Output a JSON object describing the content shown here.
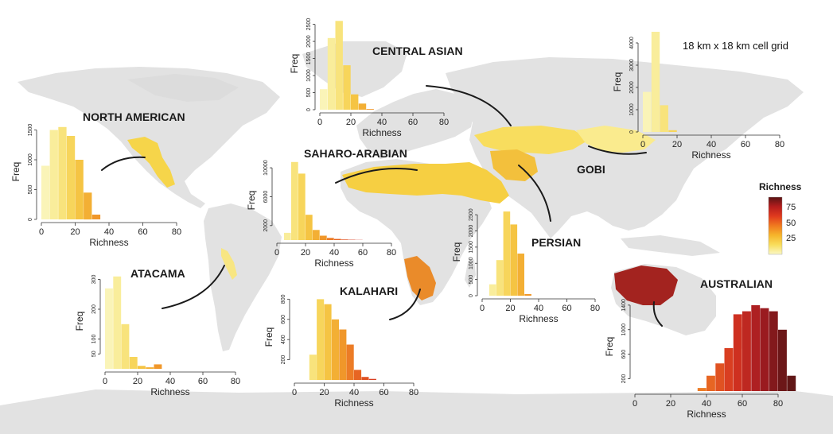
{
  "figure": {
    "grid_note": "18 km x 18 km cell grid",
    "legend": {
      "title": "Richness",
      "ticks": [
        "75",
        "50",
        "25"
      ],
      "colors": [
        "#5a1414",
        "#b51d1d",
        "#e03a1e",
        "#f07a1f",
        "#f6b52b",
        "#f8de5c",
        "#faf7c6"
      ]
    },
    "colors": {
      "land": "#e2e2e2",
      "ocean": "#ffffff",
      "arc": "#1a1a1a"
    }
  },
  "chart_data": [
    {
      "type": "bar",
      "region": "NORTH AMERICAN",
      "xlabel": "Richness",
      "ylabel": "Freq",
      "xlim": [
        0,
        80
      ],
      "xticks": [
        "0",
        "20",
        "40",
        "60",
        "80"
      ],
      "yticks": [
        "0",
        "500",
        "1000",
        "1500"
      ],
      "ylim": [
        0,
        1600
      ],
      "bin_width": 5,
      "bins_start": [
        0,
        5,
        10,
        15,
        20,
        25,
        30
      ],
      "values": [
        900,
        1500,
        1550,
        1400,
        1000,
        450,
        80
      ]
    },
    {
      "type": "bar",
      "region": "CENTRAL ASIAN",
      "xlabel": "Richness",
      "ylabel": "Freq",
      "xlim": [
        0,
        80
      ],
      "xticks": [
        "0",
        "20",
        "40",
        "60",
        "80"
      ],
      "yticks": [
        "0",
        "500",
        "1000",
        "1500",
        "2000",
        "2500"
      ],
      "ylim": [
        0,
        2700
      ],
      "bin_width": 5,
      "bins_start": [
        0,
        5,
        10,
        15,
        20,
        25,
        30
      ],
      "values": [
        600,
        2100,
        2600,
        1300,
        450,
        180,
        20
      ]
    },
    {
      "type": "bar",
      "region": "GOBI",
      "xlabel": "Richness",
      "ylabel": "Freq",
      "xlim": [
        0,
        80
      ],
      "xticks": [
        "0",
        "20",
        "40",
        "60",
        "80"
      ],
      "yticks": [
        "0",
        "1000",
        "2000",
        "3000",
        "4000"
      ],
      "ylim": [
        0,
        4500
      ],
      "bin_width": 5,
      "bins_start": [
        0,
        5,
        10,
        15
      ],
      "values": [
        1800,
        4500,
        1200,
        80
      ]
    },
    {
      "type": "bar",
      "region": "SAHARO-ARABIAN",
      "xlabel": "Richness",
      "ylabel": "Freq",
      "xlim": [
        0,
        80
      ],
      "xticks": [
        "0",
        "20",
        "40",
        "60",
        "80"
      ],
      "yticks": [
        "2000",
        "6000",
        "10000"
      ],
      "ylim": [
        0,
        11000
      ],
      "bin_width": 5,
      "bins_start": [
        5,
        10,
        15,
        20,
        25,
        30,
        35,
        40,
        45,
        50,
        55
      ],
      "values": [
        1000,
        10800,
        9200,
        3500,
        1400,
        600,
        300,
        150,
        80,
        40,
        20
      ]
    },
    {
      "type": "bar",
      "region": "PERSIAN",
      "xlabel": "Richness",
      "ylabel": "Freq",
      "xlim": [
        0,
        80
      ],
      "xticks": [
        "0",
        "20",
        "40",
        "60",
        "80"
      ],
      "yticks": [
        "0",
        "500",
        "1000",
        "1500",
        "2000",
        "2500"
      ],
      "ylim": [
        0,
        2700
      ],
      "bin_width": 5,
      "bins_start": [
        5,
        10,
        15,
        20,
        25,
        30
      ],
      "values": [
        350,
        1100,
        2600,
        2200,
        1300,
        50
      ]
    },
    {
      "type": "bar",
      "region": "ATACAMA",
      "xlabel": "Richness",
      "ylabel": "Freq",
      "xlim": [
        0,
        80
      ],
      "xticks": [
        "0",
        "20",
        "40",
        "60",
        "80"
      ],
      "yticks": [
        "50",
        "100",
        "200",
        "300"
      ],
      "ylim": [
        0,
        320
      ],
      "bin_width": 5,
      "bins_start": [
        0,
        5,
        10,
        15,
        20,
        25,
        30
      ],
      "values": [
        270,
        310,
        150,
        40,
        10,
        5,
        15
      ]
    },
    {
      "type": "bar",
      "region": "KALAHARI",
      "xlabel": "Richness",
      "ylabel": "Freq",
      "xlim": [
        0,
        80
      ],
      "xticks": [
        "0",
        "20",
        "40",
        "60",
        "80"
      ],
      "yticks": [
        "200",
        "400",
        "600",
        "800"
      ],
      "ylim": [
        0,
        850
      ],
      "bin_width": 5,
      "bins_start": [
        10,
        15,
        20,
        25,
        30,
        35,
        40,
        45,
        50
      ],
      "values": [
        250,
        800,
        750,
        600,
        500,
        350,
        100,
        30,
        10
      ]
    },
    {
      "type": "bar",
      "region": "AUSTRALIAN",
      "xlabel": "Richness",
      "ylabel": "Freq",
      "xlim": [
        0,
        80
      ],
      "xticks": [
        "0",
        "20",
        "40",
        "60",
        "80"
      ],
      "yticks": [
        "200",
        "600",
        "1000",
        "1400"
      ],
      "ylim": [
        0,
        1450
      ],
      "bin_width": 5,
      "bins_start": [
        35,
        40,
        45,
        50,
        55,
        60,
        65,
        70,
        75,
        80,
        85
      ],
      "values": [
        50,
        250,
        450,
        700,
        1250,
        1300,
        1400,
        1350,
        1300,
        1000,
        250
      ]
    }
  ]
}
